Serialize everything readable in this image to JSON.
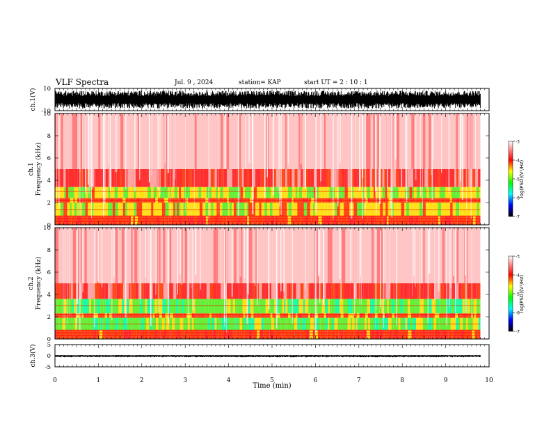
{
  "header": {
    "title": "VLF Spectra",
    "date": "Jul. 9 , 2024",
    "station": "station= KAP",
    "start_ut": "start UT =  2 : 10 : 1"
  },
  "colors": {
    "background": "#ffffff",
    "trace": "#000000",
    "colorbar_stops": [
      "#ffffff",
      "#ff0000",
      "#ffff00",
      "#00ff00",
      "#00ffff",
      "#0000ff",
      "#000000"
    ]
  },
  "chart_data": [
    {
      "type": "line",
      "panel": "ch.1",
      "ylabel": "ch.1(V)",
      "ylim": [
        -10,
        10
      ],
      "yticks": [
        "10",
        "-10"
      ],
      "x": [
        0,
        1,
        2,
        3,
        4,
        5,
        6,
        7,
        8,
        9,
        9.8
      ],
      "envelope_upper": [
        8,
        8,
        8,
        8,
        8,
        8,
        8,
        8,
        8,
        8,
        8
      ],
      "envelope_lower": [
        -8,
        -8,
        -8,
        -8,
        -8,
        -8,
        -8,
        -8,
        -8,
        -8,
        -8
      ],
      "xlim": [
        0,
        10
      ]
    },
    {
      "type": "heatmap",
      "panel": "ch.1",
      "ylabel": "ch.1\nFrequency (kHz)",
      "ylim": [
        0,
        10
      ],
      "yticks": [
        "0",
        "2",
        "4",
        "6",
        "8",
        "10"
      ],
      "xlim": [
        0,
        10
      ],
      "data_end_min": 9.8,
      "colorbar": {
        "label": "log(PSD)(V²/Hz)",
        "range": [
          -7,
          -3
        ],
        "ticks": [
          "-3",
          "-4",
          "-5",
          "-6",
          "-7"
        ]
      },
      "bands": [
        {
          "freq_khz": [
            0.0,
            0.8
          ],
          "level": -4.0
        },
        {
          "freq_khz": [
            0.8,
            2.0
          ],
          "level": -4.5
        },
        {
          "freq_khz": [
            2.0,
            2.4
          ],
          "level": -4.0
        },
        {
          "freq_khz": [
            2.4,
            3.4
          ],
          "level": -4.6
        },
        {
          "freq_khz": [
            3.4,
            5.0
          ],
          "level": -3.6
        },
        {
          "freq_khz": [
            5.0,
            10.0
          ],
          "level": -3.2
        }
      ]
    },
    {
      "type": "heatmap",
      "panel": "ch.2",
      "ylabel": "ch.2\nFrequency (kHz)",
      "ylim": [
        0,
        10
      ],
      "yticks": [
        "0",
        "2",
        "4",
        "6",
        "8",
        "10"
      ],
      "xlim": [
        0,
        10
      ],
      "data_end_min": 9.8,
      "colorbar": {
        "label": "log(PSD)(V²/Hz)",
        "range": [
          -7,
          -3
        ],
        "ticks": [
          "-3",
          "-4",
          "-5",
          "-6",
          "-7"
        ]
      },
      "bands": [
        {
          "freq_khz": [
            0.0,
            0.8
          ],
          "level": -4.0
        },
        {
          "freq_khz": [
            0.8,
            1.9
          ],
          "level": -4.9
        },
        {
          "freq_khz": [
            1.9,
            2.3
          ],
          "level": -4.1
        },
        {
          "freq_khz": [
            2.3,
            3.6
          ],
          "level": -4.9
        },
        {
          "freq_khz": [
            3.6,
            5.0
          ],
          "level": -3.6
        },
        {
          "freq_khz": [
            5.0,
            10.0
          ],
          "level": -3.2
        }
      ]
    },
    {
      "type": "line",
      "panel": "ch.3",
      "ylabel": "ch.3(V)",
      "ylim": [
        -5,
        5
      ],
      "yticks": [
        "5",
        "0",
        "-5"
      ],
      "x": [
        0,
        9.8
      ],
      "envelope_upper": [
        0.3,
        0.3
      ],
      "envelope_lower": [
        -0.7,
        -0.7
      ],
      "xlim": [
        0,
        10
      ],
      "xlabel": "Time (min)",
      "xticks": [
        "0",
        "1",
        "2",
        "3",
        "4",
        "5",
        "6",
        "7",
        "8",
        "9",
        "10"
      ]
    }
  ]
}
